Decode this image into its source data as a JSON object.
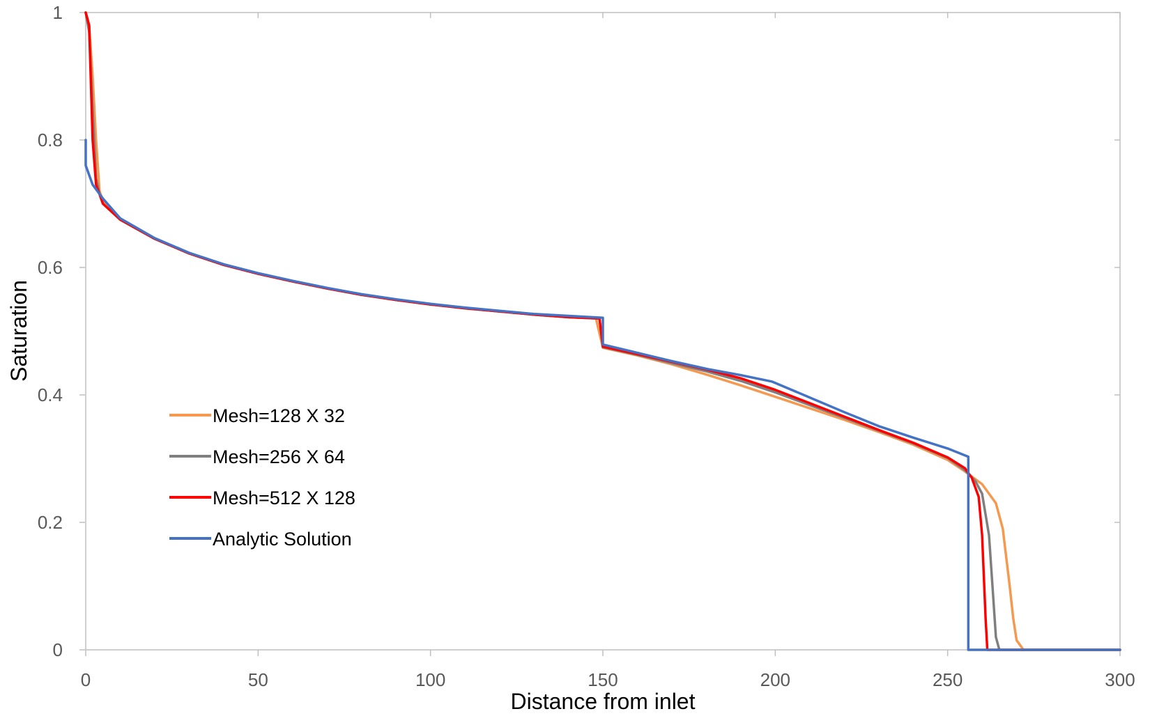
{
  "chart_data": {
    "type": "line",
    "title": "",
    "xlabel": "Distance from inlet",
    "ylabel": "Saturation",
    "xlim": [
      0,
      300
    ],
    "ylim": [
      0,
      1
    ],
    "xticks": [
      "0",
      "50",
      "100",
      "150",
      "200",
      "250",
      "300"
    ],
    "yticks": [
      "0",
      "0.2",
      "0.4",
      "0.6",
      "0.8",
      "1"
    ],
    "legend_position": "center-left",
    "series": [
      {
        "name": "Mesh=128 X 32",
        "color": "#F4994F",
        "points": [
          [
            0,
            1.0
          ],
          [
            1,
            0.98
          ],
          [
            2,
            0.9
          ],
          [
            3,
            0.8
          ],
          [
            4,
            0.72
          ],
          [
            5,
            0.705
          ],
          [
            10,
            0.675
          ],
          [
            20,
            0.645
          ],
          [
            30,
            0.622
          ],
          [
            40,
            0.604
          ],
          [
            50,
            0.59
          ],
          [
            60,
            0.578
          ],
          [
            70,
            0.567
          ],
          [
            80,
            0.557
          ],
          [
            90,
            0.549
          ],
          [
            100,
            0.542
          ],
          [
            110,
            0.536
          ],
          [
            120,
            0.531
          ],
          [
            130,
            0.526
          ],
          [
            140,
            0.522
          ],
          [
            148,
            0.52
          ],
          [
            150,
            0.474
          ],
          [
            160,
            0.462
          ],
          [
            170,
            0.448
          ],
          [
            180,
            0.432
          ],
          [
            190,
            0.415
          ],
          [
            200,
            0.397
          ],
          [
            210,
            0.379
          ],
          [
            220,
            0.361
          ],
          [
            230,
            0.342
          ],
          [
            240,
            0.322
          ],
          [
            250,
            0.298
          ],
          [
            255,
            0.28
          ],
          [
            260,
            0.26
          ],
          [
            264,
            0.23
          ],
          [
            266,
            0.19
          ],
          [
            268,
            0.1
          ],
          [
            269,
            0.05
          ],
          [
            270,
            0.015
          ],
          [
            272,
            0.0
          ],
          [
            300,
            0.0
          ]
        ]
      },
      {
        "name": "Mesh=256 X 64",
        "color": "#7F7F7F",
        "points": [
          [
            0,
            1.0
          ],
          [
            1,
            0.97
          ],
          [
            2,
            0.85
          ],
          [
            3,
            0.74
          ],
          [
            4,
            0.715
          ],
          [
            5,
            0.7
          ],
          [
            10,
            0.675
          ],
          [
            20,
            0.645
          ],
          [
            30,
            0.622
          ],
          [
            40,
            0.604
          ],
          [
            50,
            0.59
          ],
          [
            60,
            0.578
          ],
          [
            70,
            0.567
          ],
          [
            80,
            0.557
          ],
          [
            90,
            0.549
          ],
          [
            100,
            0.542
          ],
          [
            110,
            0.536
          ],
          [
            120,
            0.531
          ],
          [
            130,
            0.526
          ],
          [
            140,
            0.522
          ],
          [
            149,
            0.52
          ],
          [
            150,
            0.475
          ],
          [
            160,
            0.463
          ],
          [
            170,
            0.45
          ],
          [
            180,
            0.437
          ],
          [
            190,
            0.422
          ],
          [
            200,
            0.404
          ],
          [
            210,
            0.384
          ],
          [
            220,
            0.364
          ],
          [
            230,
            0.344
          ],
          [
            240,
            0.324
          ],
          [
            250,
            0.301
          ],
          [
            255,
            0.282
          ],
          [
            258,
            0.265
          ],
          [
            260,
            0.245
          ],
          [
            262,
            0.18
          ],
          [
            263,
            0.1
          ],
          [
            264,
            0.02
          ],
          [
            265,
            0.0
          ],
          [
            300,
            0.0
          ]
        ]
      },
      {
        "name": "Mesh=512 X 128",
        "color": "#FF0000",
        "points": [
          [
            0,
            1.0
          ],
          [
            1,
            0.98
          ],
          [
            2,
            0.8
          ],
          [
            3,
            0.73
          ],
          [
            4,
            0.715
          ],
          [
            5,
            0.7
          ],
          [
            10,
            0.675
          ],
          [
            20,
            0.645
          ],
          [
            30,
            0.622
          ],
          [
            40,
            0.604
          ],
          [
            50,
            0.59
          ],
          [
            60,
            0.578
          ],
          [
            70,
            0.567
          ],
          [
            80,
            0.557
          ],
          [
            90,
            0.549
          ],
          [
            100,
            0.542
          ],
          [
            110,
            0.536
          ],
          [
            120,
            0.531
          ],
          [
            130,
            0.526
          ],
          [
            140,
            0.522
          ],
          [
            149,
            0.52
          ],
          [
            150,
            0.476
          ],
          [
            160,
            0.464
          ],
          [
            170,
            0.452
          ],
          [
            180,
            0.44
          ],
          [
            190,
            0.426
          ],
          [
            200,
            0.408
          ],
          [
            210,
            0.387
          ],
          [
            220,
            0.366
          ],
          [
            230,
            0.345
          ],
          [
            240,
            0.325
          ],
          [
            250,
            0.302
          ],
          [
            255,
            0.285
          ],
          [
            257,
            0.27
          ],
          [
            259,
            0.24
          ],
          [
            260,
            0.18
          ],
          [
            261,
            0.05
          ],
          [
            261.5,
            0.0
          ],
          [
            300,
            0.0
          ]
        ]
      },
      {
        "name": "Analytic Solution",
        "color": "#4472C4",
        "points": [
          [
            0,
            0.8
          ],
          [
            0,
            0.76
          ],
          [
            2,
            0.73
          ],
          [
            5,
            0.708
          ],
          [
            10,
            0.677
          ],
          [
            20,
            0.646
          ],
          [
            30,
            0.623
          ],
          [
            40,
            0.605
          ],
          [
            50,
            0.591
          ],
          [
            60,
            0.579
          ],
          [
            70,
            0.568
          ],
          [
            80,
            0.558
          ],
          [
            90,
            0.55
          ],
          [
            100,
            0.543
          ],
          [
            110,
            0.537
          ],
          [
            120,
            0.532
          ],
          [
            130,
            0.527
          ],
          [
            140,
            0.524
          ],
          [
            150,
            0.521
          ],
          [
            150,
            0.479
          ],
          [
            160,
            0.466
          ],
          [
            170,
            0.453
          ],
          [
            180,
            0.441
          ],
          [
            190,
            0.431
          ],
          [
            199,
            0.421
          ],
          [
            210,
            0.396
          ],
          [
            220,
            0.373
          ],
          [
            230,
            0.351
          ],
          [
            240,
            0.333
          ],
          [
            250,
            0.316
          ],
          [
            256,
            0.303
          ],
          [
            256,
            0.0
          ],
          [
            300,
            0.0
          ]
        ]
      }
    ]
  }
}
